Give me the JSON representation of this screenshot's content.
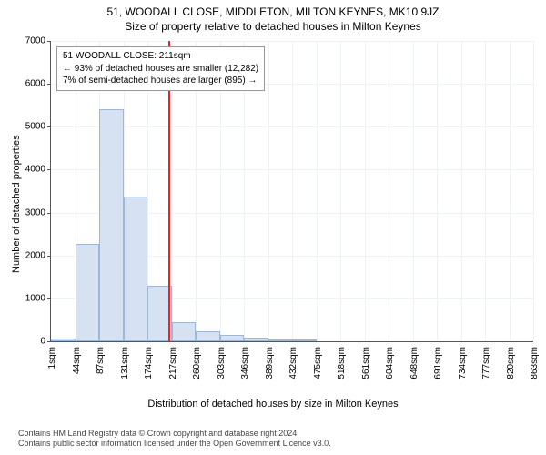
{
  "title": "51, WOODALL CLOSE, MIDDLETON, MILTON KEYNES, MK10 9JZ",
  "subtitle": "Size of property relative to detached houses in Milton Keynes",
  "chart": {
    "type": "histogram",
    "ylabel": "Number of detached properties",
    "xlabel": "Distribution of detached houses by size in Milton Keynes",
    "ylim": [
      0,
      7000
    ],
    "ytick_step": 1000,
    "xtick_labels": [
      "1sqm",
      "44sqm",
      "87sqm",
      "131sqm",
      "174sqm",
      "217sqm",
      "260sqm",
      "303sqm",
      "346sqm",
      "389sqm",
      "432sqm",
      "475sqm",
      "518sqm",
      "561sqm",
      "604sqm",
      "648sqm",
      "691sqm",
      "734sqm",
      "777sqm",
      "820sqm",
      "863sqm"
    ],
    "bar_values": [
      70,
      2260,
      5420,
      3380,
      1290,
      450,
      230,
      150,
      80,
      50,
      30,
      0,
      0,
      0,
      0,
      0,
      0,
      0,
      0,
      0
    ],
    "bar_fill": "#d6e2f2",
    "bar_border": "#9db7d9",
    "grid_color": "#eef2f6",
    "axis_color": "#555555",
    "background_color": "#ffffff",
    "reference_line": {
      "value_sqm": 211,
      "color": "#ee2222"
    },
    "label_fontsize": 11,
    "tick_fontsize": 10
  },
  "info_box": {
    "line1": "51 WOODALL CLOSE: 211sqm",
    "line2": "← 93% of detached houses are smaller (12,282)",
    "line3": "7% of semi-detached houses are larger (895) →"
  },
  "footer": {
    "line1": "Contains HM Land Registry data © Crown copyright and database right 2024.",
    "line2": "Contains public sector information licensed under the Open Government Licence v3.0."
  }
}
